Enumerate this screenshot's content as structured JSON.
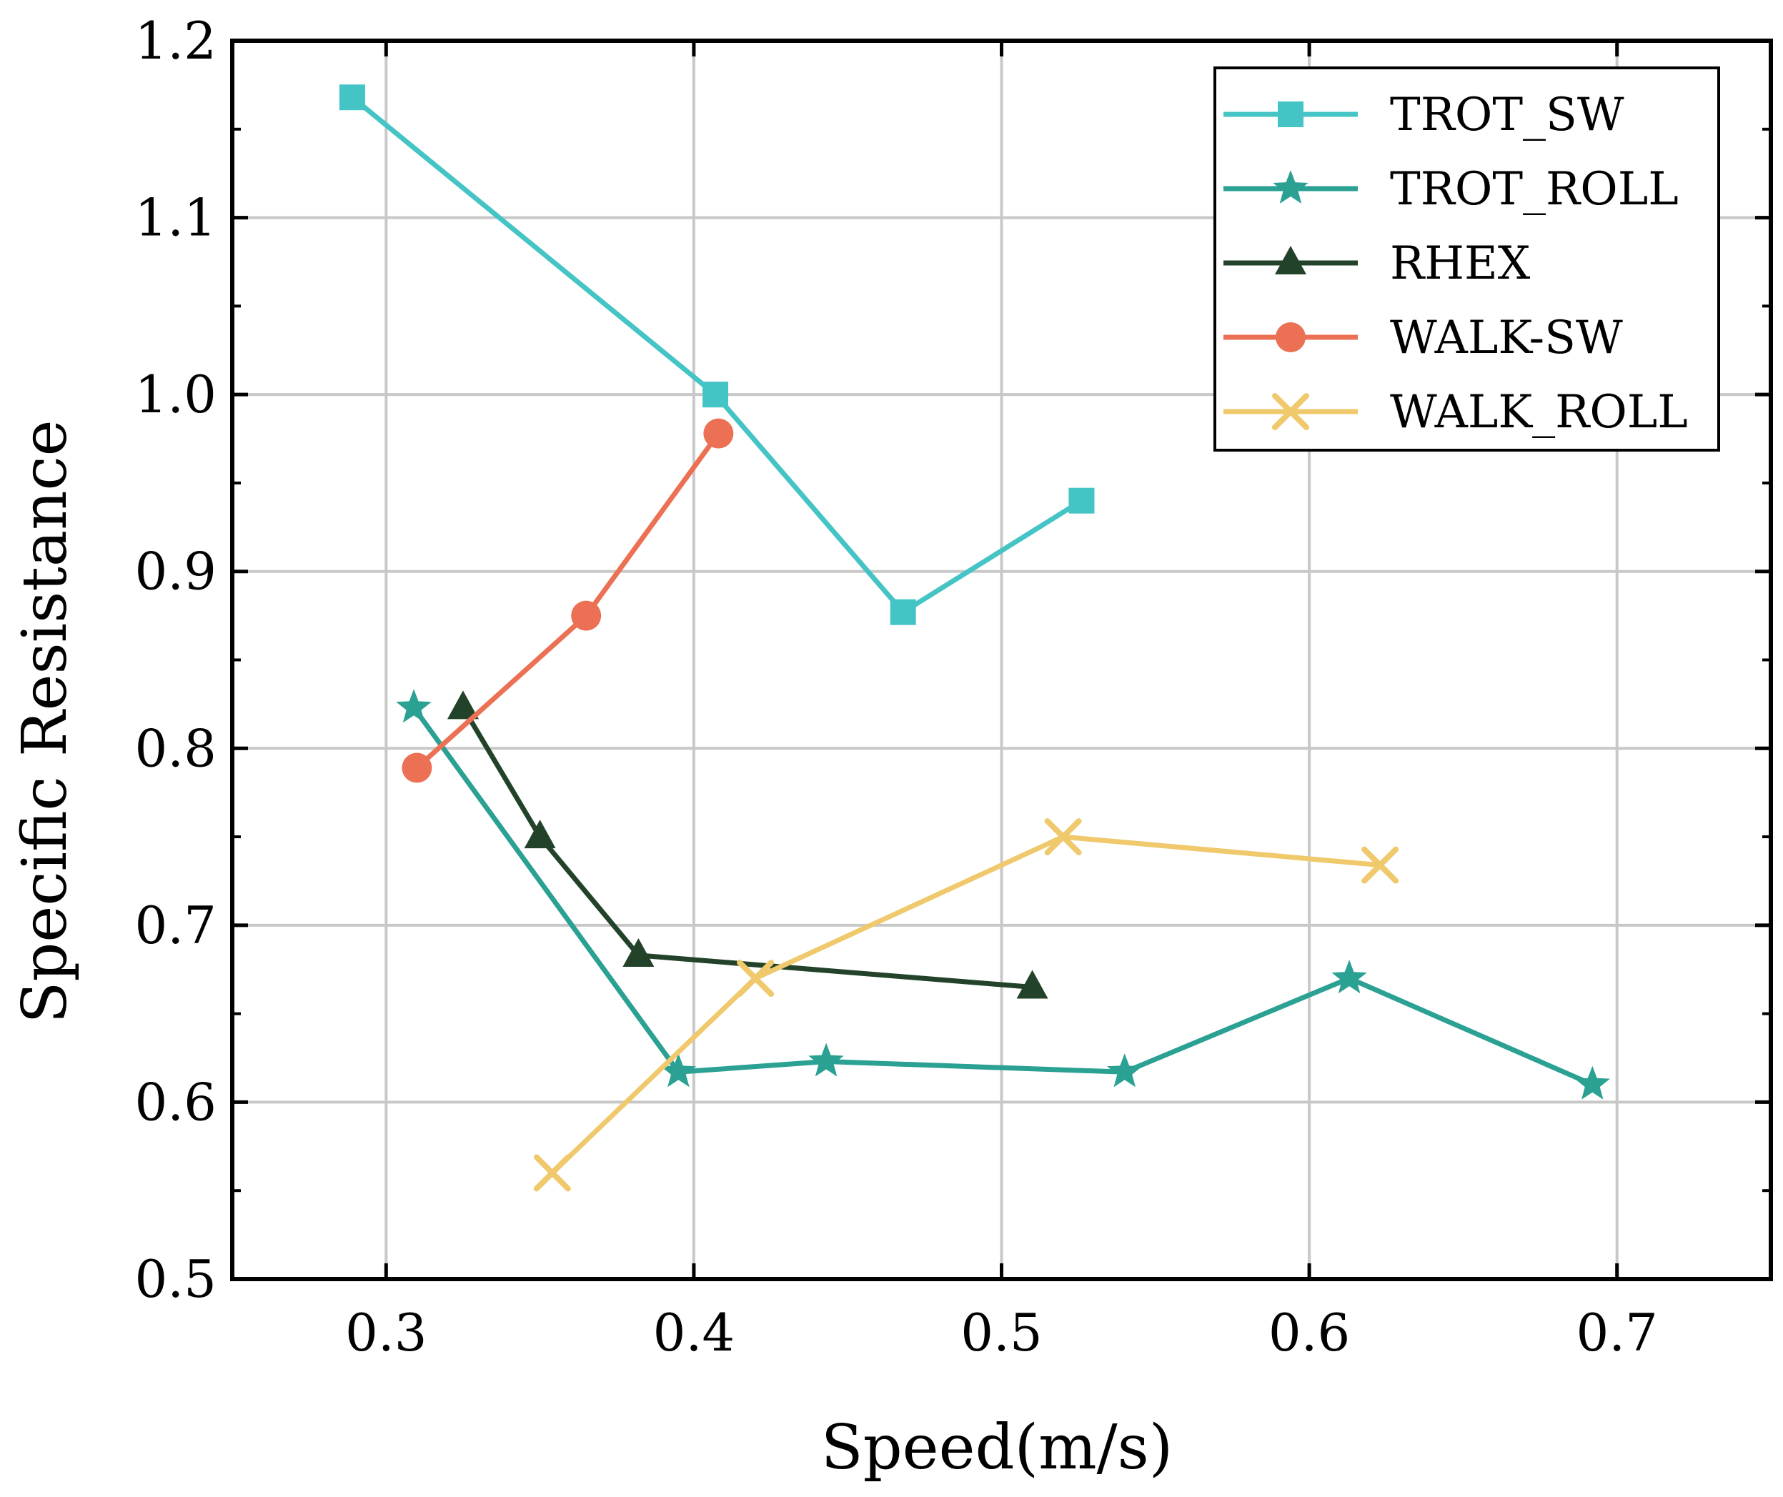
{
  "chart_data": {
    "type": "line",
    "title": "",
    "xlabel": "Speed(m/s)",
    "ylabel": "Specific Resistance",
    "xlim": [
      0.25,
      0.75
    ],
    "ylim": [
      0.5,
      1.2
    ],
    "xticks": [
      0.3,
      0.4,
      0.5,
      0.6,
      0.7
    ],
    "yticks": [
      0.5,
      0.6,
      0.7,
      0.8,
      0.9,
      1.0,
      1.1,
      1.2
    ],
    "xtick_labels": [
      "0.3",
      "0.4",
      "0.5",
      "0.6",
      "0.7"
    ],
    "ytick_labels": [
      "0.5",
      "0.6",
      "0.7",
      "0.8",
      "0.9",
      "1.0",
      "1.1",
      "1.2"
    ],
    "grid": true,
    "legend_position": "top-right",
    "series": [
      {
        "name": "TROT_SW",
        "color": "#45c4c5",
        "marker": "square",
        "x": [
          0.289,
          0.407,
          0.468,
          0.526
        ],
        "y": [
          1.168,
          1.0,
          0.877,
          0.94
        ]
      },
      {
        "name": "TROT_ROLL",
        "color": "#2aa193",
        "marker": "star",
        "x": [
          0.309,
          0.395,
          0.443,
          0.54,
          0.613,
          0.692
        ],
        "y": [
          0.823,
          0.617,
          0.623,
          0.617,
          0.67,
          0.61
        ]
      },
      {
        "name": "RHEX",
        "color": "#22432a",
        "marker": "triangle",
        "x": [
          0.325,
          0.35,
          0.382,
          0.51
        ],
        "y": [
          0.823,
          0.75,
          0.683,
          0.665
        ]
      },
      {
        "name": "WALK-SW",
        "color": "#ec7054",
        "marker": "circle",
        "x": [
          0.31,
          0.365,
          0.408
        ],
        "y": [
          0.789,
          0.875,
          0.978
        ]
      },
      {
        "name": "WALK_ROLL",
        "color": "#efc96b",
        "marker": "x",
        "x": [
          0.354,
          0.42,
          0.52,
          0.623
        ],
        "y": [
          0.56,
          0.67,
          0.75,
          0.734
        ]
      }
    ]
  }
}
